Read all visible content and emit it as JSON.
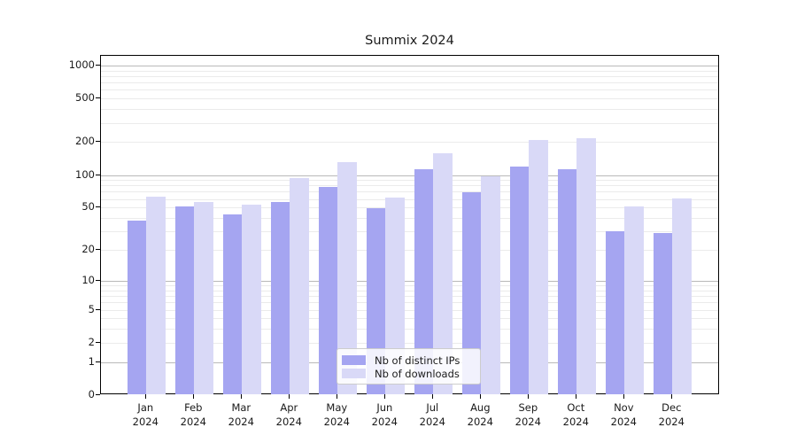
{
  "title": "Summix 2024",
  "legend": {
    "items": [
      {
        "label": "Nb of distinct IPs",
        "color": "#a5a5f1"
      },
      {
        "label": "Nb of downloads",
        "color": "#d9d9f7"
      }
    ]
  },
  "axes": {
    "y_tick_labels": [
      "0",
      "1",
      "2",
      "5",
      "10",
      "20",
      "50",
      "100",
      "200",
      "500",
      "1000"
    ]
  },
  "chart_data": {
    "type": "bar",
    "title": "Summix 2024",
    "xlabel": "",
    "ylabel": "",
    "categories": [
      "Jan 2024",
      "Feb 2024",
      "Mar 2024",
      "Apr 2024",
      "May 2024",
      "Jun 2024",
      "Jul 2024",
      "Aug 2024",
      "Sep 2024",
      "Oct 2024",
      "Nov 2024",
      "Dec 2024"
    ],
    "series": [
      {
        "name": "Nb of distinct IPs",
        "color": "#a5a5f1",
        "values": [
          38,
          51,
          43,
          56,
          78,
          49,
          112,
          69,
          119,
          114,
          30,
          29
        ]
      },
      {
        "name": "Nb of downloads",
        "color": "#d9d9f7",
        "values": [
          63,
          56,
          53,
          93,
          132,
          62,
          158,
          97,
          208,
          217,
          51,
          61
        ]
      }
    ],
    "yscale": "log1p",
    "yticks": [
      0,
      1,
      2,
      5,
      10,
      20,
      50,
      100,
      200,
      500,
      1000
    ],
    "major_grid_values": [
      1,
      10,
      100,
      1000
    ],
    "minor_grid_values": [
      2,
      3,
      4,
      5,
      6,
      7,
      8,
      9,
      20,
      30,
      40,
      50,
      60,
      70,
      80,
      90,
      200,
      300,
      400,
      500,
      600,
      700,
      800,
      900
    ],
    "ylim": [
      0,
      1200
    ],
    "grid": true,
    "legend_position": "lower center"
  }
}
